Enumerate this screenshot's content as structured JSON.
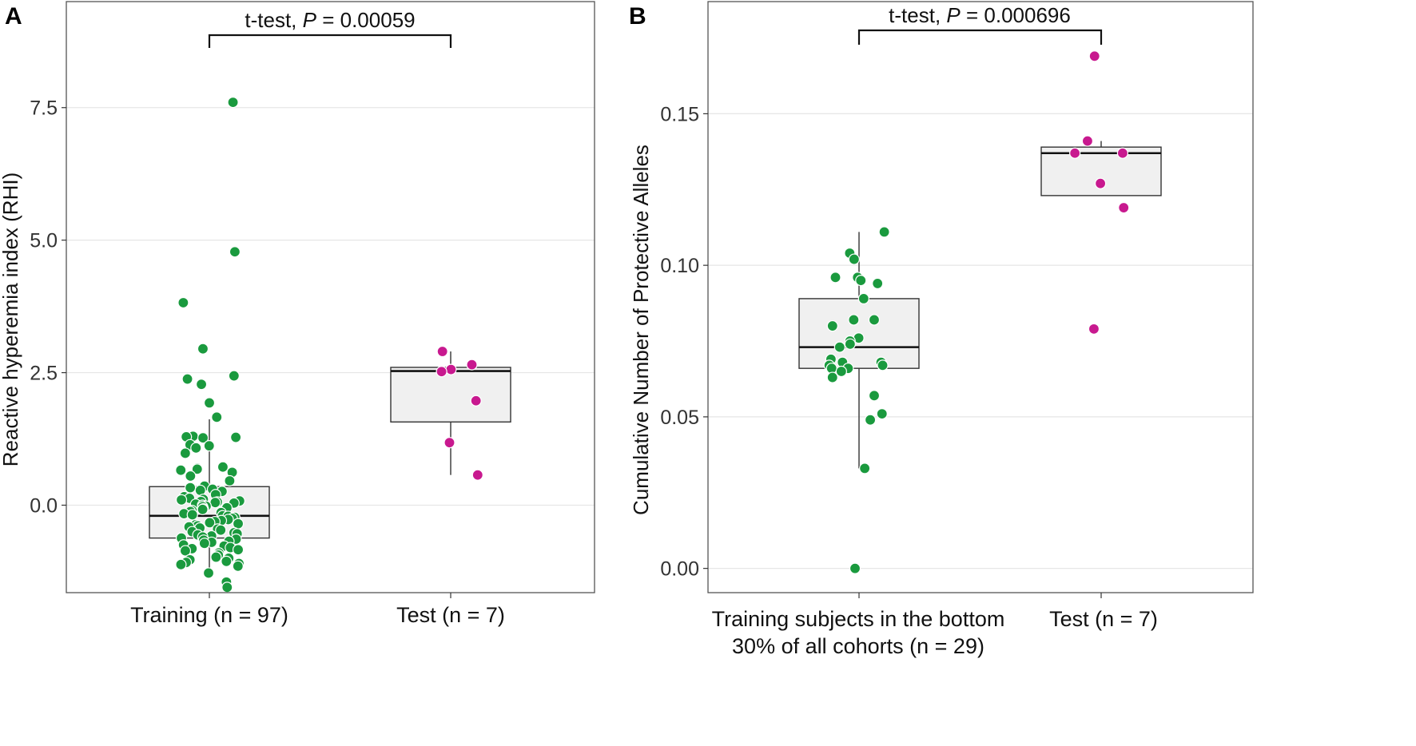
{
  "chart_data": [
    {
      "type": "box",
      "panel_label": "A",
      "ylabel": "Reactive hyperemia index (RHI)",
      "xlabel": "",
      "ylim": [
        -1.65,
        9.5
      ],
      "yticks": [
        0.0,
        2.5,
        5.0,
        7.5
      ],
      "ytick_labels": [
        "0.0",
        "2.5",
        "5.0",
        "7.5"
      ],
      "grid": true,
      "categories": [
        "Training (n = 97)",
        "Test (n = 7)"
      ],
      "annotation": {
        "test": "t-test,",
        "p_symbol": "P",
        "p_value": "= 0.00059"
      },
      "series": [
        {
          "name": "Training",
          "color": "#1a9a3e",
          "box": {
            "q1": -0.62,
            "median": -0.2,
            "q3": 0.35,
            "whisker_low": -1.35,
            "whisker_high": 1.62
          },
          "points": [
            7.6,
            4.78,
            3.82,
            2.95,
            2.44,
            2.38,
            2.28,
            1.93,
            1.66,
            1.3,
            1.29,
            1.28,
            1.27,
            1.14,
            1.12,
            1.08,
            0.98,
            0.72,
            0.7,
            0.68,
            0.66,
            0.62,
            0.55,
            0.46,
            0.36,
            0.33,
            0.3,
            0.28,
            0.26,
            0.2,
            0.16,
            0.13,
            0.11,
            0.1,
            0.08,
            0.07,
            0.06,
            0.05,
            0.04,
            0.02,
            0.0,
            -0.02,
            -0.03,
            -0.05,
            -0.07,
            -0.08,
            -0.1,
            -0.12,
            -0.14,
            -0.16,
            -0.18,
            -0.2,
            -0.21,
            -0.23,
            -0.25,
            -0.27,
            -0.29,
            -0.31,
            -0.33,
            -0.35,
            -0.37,
            -0.39,
            -0.41,
            -0.43,
            -0.45,
            -0.47,
            -0.5,
            -0.52,
            -0.54,
            -0.56,
            -0.58,
            -0.6,
            -0.62,
            -0.64,
            -0.66,
            -0.68,
            -0.7,
            -0.72,
            -0.75,
            -0.77,
            -0.8,
            -0.82,
            -0.84,
            -0.86,
            -0.9,
            -0.94,
            -0.98,
            -1.0,
            -1.03,
            -1.06,
            -1.08,
            -1.1,
            -1.12,
            -1.15,
            -1.28,
            -1.45,
            -1.55
          ]
        },
        {
          "name": "Test",
          "color": "#c8198f",
          "box": {
            "q1": 1.57,
            "median": 2.53,
            "q3": 2.6,
            "whisker_low": 0.57,
            "whisker_high": 2.9
          },
          "points": [
            2.9,
            2.65,
            2.56,
            2.52,
            1.97,
            1.18,
            0.57
          ]
        }
      ]
    },
    {
      "type": "box",
      "panel_label": "B",
      "ylabel": "Cumulative Number of Protective Alleles",
      "xlabel": "",
      "ylim": [
        -0.008,
        0.187
      ],
      "yticks": [
        0.0,
        0.05,
        0.1,
        0.15
      ],
      "ytick_labels": [
        "0.00",
        "0.05",
        "0.10",
        "0.15"
      ],
      "grid": true,
      "categories": [
        "Training subjects in the bottom",
        "Test (n = 7)"
      ],
      "category_sublabels": [
        "30% of all cohorts (n = 29)",
        ""
      ],
      "annotation": {
        "test": "t-test,",
        "p_symbol": "P",
        "p_value": "= 0.000696"
      },
      "series": [
        {
          "name": "Training subjects in the bottom 30%",
          "color": "#1a9a3e",
          "box": {
            "q1": 0.066,
            "median": 0.073,
            "q3": 0.089,
            "whisker_low": 0.033,
            "whisker_high": 0.111
          },
          "points": [
            0.111,
            0.104,
            0.102,
            0.096,
            0.096,
            0.095,
            0.094,
            0.089,
            0.082,
            0.082,
            0.08,
            0.076,
            0.075,
            0.074,
            0.073,
            0.069,
            0.068,
            0.068,
            0.067,
            0.067,
            0.066,
            0.066,
            0.065,
            0.063,
            0.057,
            0.051,
            0.049,
            0.033,
            0.0
          ]
        },
        {
          "name": "Test",
          "color": "#c8198f",
          "box": {
            "q1": 0.123,
            "median": 0.137,
            "q3": 0.139,
            "whisker_low": 0.123,
            "whisker_high": 0.141
          },
          "points": [
            0.169,
            0.141,
            0.137,
            0.137,
            0.127,
            0.119,
            0.079
          ]
        }
      ]
    }
  ]
}
